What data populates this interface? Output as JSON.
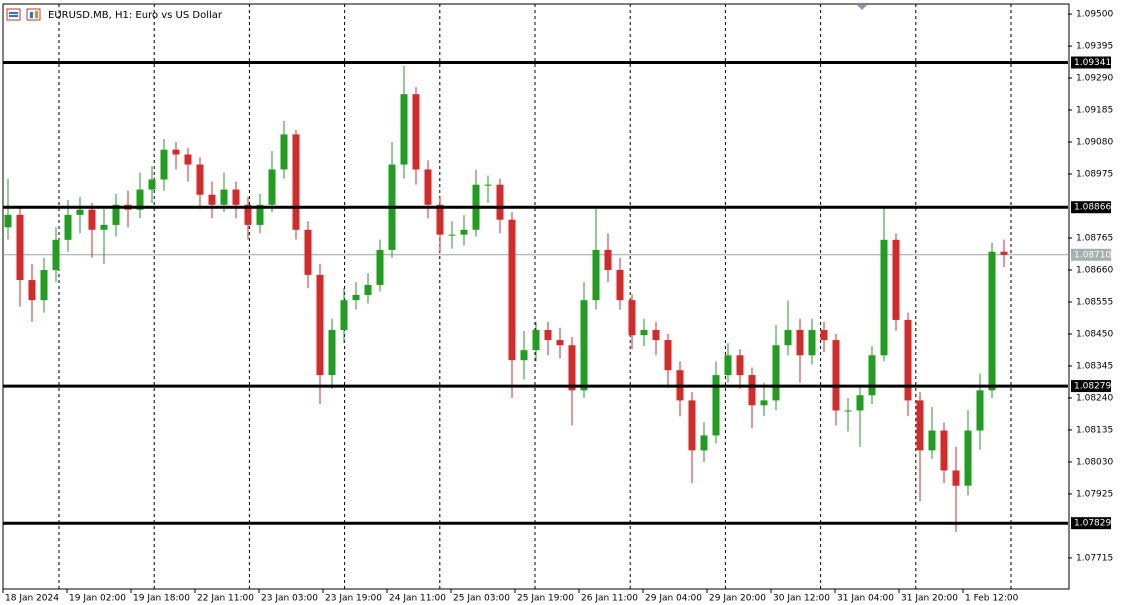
{
  "chart_data": {
    "type": "candlestick",
    "title": "EURUSD.MB, H1:  Euro vs US Dollar",
    "up_color": "#1f9e1f",
    "down_color": "#d42a2a",
    "ylim": [
      1.07613,
      1.09533
    ],
    "yticks": [
      {
        "value": 1.095,
        "label": "1.09500"
      },
      {
        "value": 1.09395,
        "label": "1.09395"
      },
      {
        "value": 1.0929,
        "label": "1.09290"
      },
      {
        "value": 1.09185,
        "label": "1.09185"
      },
      {
        "value": 1.0908,
        "label": "1.09080"
      },
      {
        "value": 1.08975,
        "label": "1.08975"
      },
      {
        "value": 1.08765,
        "label": "1.08765"
      },
      {
        "value": 1.0866,
        "label": "1.08660"
      },
      {
        "value": 1.08555,
        "label": "1.08555"
      },
      {
        "value": 1.0845,
        "label": "1.08450"
      },
      {
        "value": 1.08345,
        "label": "1.08345"
      },
      {
        "value": 1.0824,
        "label": "1.08240"
      },
      {
        "value": 1.08135,
        "label": "1.08135"
      },
      {
        "value": 1.0803,
        "label": "1.08030"
      },
      {
        "value": 1.07925,
        "label": "1.07925"
      },
      {
        "value": 1.07715,
        "label": "1.07715"
      }
    ],
    "levels": [
      {
        "value": 1.09341,
        "label": "1.09341"
      },
      {
        "value": 1.08866,
        "label": "1.08866"
      },
      {
        "value": 1.08279,
        "label": "1.08279"
      },
      {
        "value": 1.07829,
        "label": "1.07829"
      }
    ],
    "current_price": {
      "value": 1.0871,
      "label": "1.08710"
    },
    "xlabels": [
      "18 Jan 2024",
      "19 Jan 02:00",
      "19 Jan 18:00",
      "22 Jan 11:00",
      "23 Jan 03:00",
      "23 Jan 19:00",
      "24 Jan 11:00",
      "25 Jan 03:00",
      "25 Jan 19:00",
      "26 Jan 11:00",
      "29 Jan 04:00",
      "29 Jan 20:00",
      "30 Jan 12:00",
      "31 Jan 04:00",
      "31 Jan 20:00",
      "1 Feb 12:00"
    ],
    "open": [
      1.088,
      1.08841,
      1.08627,
      1.08561,
      1.0866,
      1.08759,
      1.08841,
      1.08858,
      1.08792,
      1.08808,
      1.08874,
      1.08858,
      1.08924,
      1.08957,
      1.09055,
      1.09039,
      1.09006,
      1.08907,
      1.08874,
      1.08924,
      1.08874,
      1.08808,
      1.08874,
      1.0899,
      1.09105,
      1.08792,
      1.08644,
      1.08315,
      1.08463,
      1.08561,
      1.08578,
      1.08611,
      1.08726,
      1.09006,
      1.09237,
      1.0899,
      1.08874,
      1.08776,
      1.08776,
      1.08792,
      1.0894,
      1.0894,
      1.08825,
      1.08364,
      1.08397,
      1.08463,
      1.0843,
      1.08413,
      1.08265,
      1.08561,
      1.08726,
      1.0866,
      1.08561,
      1.08446,
      1.08463,
      1.0843,
      1.08331,
      1.08232,
      1.08068,
      1.08117,
      1.08315,
      1.0838,
      1.08315,
      1.08216,
      1.08232,
      1.08413,
      1.08463,
      1.0838,
      1.08463,
      1.0843,
      1.08199,
      1.08199,
      1.08249,
      1.0838,
      1.08759,
      1.08496,
      1.08232,
      1.08068,
      1.08133,
      1.08002,
      1.07952,
      1.08133,
      1.08265,
      1.0872
    ],
    "high": [
      1.0896,
      1.0887,
      1.0868,
      1.087,
      1.088,
      1.0889,
      1.089,
      1.0888,
      1.0886,
      1.0891,
      1.0892,
      1.0898,
      1.09,
      1.0909,
      1.0908,
      1.0906,
      1.0903,
      1.0895,
      1.0898,
      1.0895,
      1.089,
      1.0891,
      1.0905,
      1.0915,
      1.0912,
      1.0882,
      1.0868,
      1.085,
      1.086,
      1.0862,
      1.0865,
      1.0876,
      1.0908,
      1.0933,
      1.0926,
      1.0902,
      1.089,
      1.0882,
      1.0884,
      1.0899,
      1.0897,
      1.0896,
      1.0885,
      1.0846,
      1.0849,
      1.0849,
      1.0847,
      1.0844,
      1.0862,
      1.0886,
      1.0878,
      1.087,
      1.0858,
      1.085,
      1.0849,
      1.0845,
      1.0836,
      1.0826,
      1.0816,
      1.0836,
      1.0842,
      1.084,
      1.0834,
      1.0829,
      1.0848,
      1.0856,
      1.085,
      1.085,
      1.0849,
      1.0845,
      1.0824,
      1.0828,
      1.0841,
      1.0887,
      1.0878,
      1.0852,
      1.0826,
      1.0821,
      1.0816,
      1.0808,
      1.082,
      1.0832,
      1.0875,
      1.0876
    ],
    "low": [
      1.0876,
      1.0854,
      1.0849,
      1.0852,
      1.0862,
      1.0872,
      1.0878,
      1.087,
      1.0868,
      1.0877,
      1.088,
      1.0883,
      1.0888,
      1.0892,
      1.0899,
      1.0895,
      1.0886,
      1.0883,
      1.0885,
      1.0883,
      1.0876,
      1.0878,
      1.0885,
      1.0896,
      1.0876,
      1.086,
      1.0822,
      1.0827,
      1.0842,
      1.0853,
      1.0855,
      1.0859,
      1.087,
      1.0896,
      1.0894,
      1.0883,
      1.0872,
      1.0873,
      1.0874,
      1.0877,
      1.0888,
      1.0878,
      1.0824,
      1.083,
      1.0836,
      1.0838,
      1.0837,
      1.0815,
      1.0824,
      1.0853,
      1.0862,
      1.0853,
      1.084,
      1.0841,
      1.0838,
      1.0828,
      1.0818,
      1.0796,
      1.0803,
      1.0809,
      1.0829,
      1.0827,
      1.0814,
      1.0818,
      1.082,
      1.0838,
      1.0829,
      1.0835,
      1.0839,
      1.0815,
      1.0813,
      1.0808,
      1.0822,
      1.0836,
      1.0846,
      1.0818,
      1.079,
      1.0804,
      1.0796,
      1.078,
      1.0792,
      1.0807,
      1.0824,
      1.0867
    ],
    "close": [
      1.08841,
      1.08627,
      1.08561,
      1.0866,
      1.08759,
      1.08841,
      1.08858,
      1.08792,
      1.08808,
      1.08874,
      1.08858,
      1.08924,
      1.08957,
      1.09055,
      1.09039,
      1.09006,
      1.08907,
      1.08874,
      1.08924,
      1.08874,
      1.08808,
      1.08874,
      1.0899,
      1.09105,
      1.08792,
      1.08644,
      1.08315,
      1.08463,
      1.08561,
      1.08578,
      1.08611,
      1.08726,
      1.09006,
      1.09237,
      1.0899,
      1.08874,
      1.08776,
      1.08776,
      1.08792,
      1.0894,
      1.0894,
      1.08825,
      1.08364,
      1.08397,
      1.08463,
      1.0843,
      1.08413,
      1.08265,
      1.08561,
      1.08726,
      1.0866,
      1.08561,
      1.08446,
      1.08463,
      1.0843,
      1.08331,
      1.08232,
      1.08068,
      1.08117,
      1.08315,
      1.0838,
      1.08315,
      1.08216,
      1.08232,
      1.08413,
      1.08463,
      1.0838,
      1.08463,
      1.0843,
      1.08199,
      1.08199,
      1.08249,
      1.0838,
      1.08759,
      1.08496,
      1.08232,
      1.08068,
      1.08133,
      1.08002,
      1.07952,
      1.08133,
      1.08265,
      1.0872,
      1.0871
    ]
  }
}
